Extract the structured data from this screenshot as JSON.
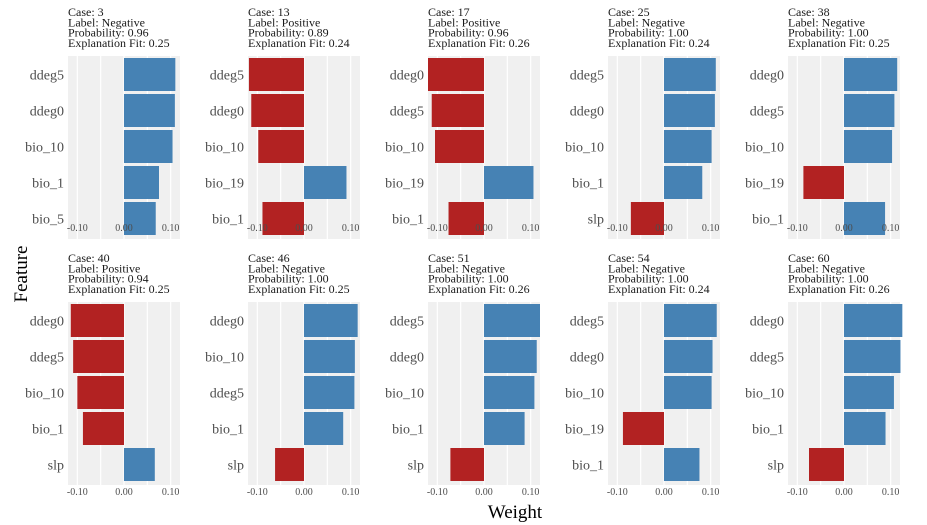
{
  "xlabel": "Weight",
  "ylabel": "Feature",
  "colors": {
    "supports": "#4682B4",
    "contradicts": "#B22222",
    "panel_bg": "#F0F0F0"
  },
  "chart_data": [
    {
      "type": "bar",
      "orientation": "horizontal",
      "case": "Case: 3",
      "label": "Label: Negative",
      "probability": "Probability: 0.96",
      "fit": "Explanation Fit: 0.25",
      "categories": [
        "ddeg5",
        "ddeg0",
        "bio_10",
        "bio_1",
        "bio_5"
      ],
      "values": [
        0.11,
        0.109,
        0.104,
        0.075,
        0.068
      ],
      "xlim": [
        -0.12,
        0.12
      ],
      "xticks": [
        "-0.10",
        "0.00",
        "0.10"
      ]
    },
    {
      "type": "bar",
      "orientation": "horizontal",
      "case": "Case: 13",
      "label": "Label: Positive",
      "probability": "Probability: 0.89",
      "fit": "Explanation Fit: 0.24",
      "categories": [
        "ddeg5",
        "ddeg0",
        "bio_10",
        "bio_19",
        "bio_1"
      ],
      "values": [
        -0.118,
        -0.113,
        -0.098,
        0.091,
        -0.089
      ],
      "xlim": [
        -0.12,
        0.12
      ],
      "xticks": [
        "-0.10",
        "0.00",
        "0.10"
      ]
    },
    {
      "type": "bar",
      "orientation": "horizontal",
      "case": "Case: 17",
      "label": "Label: Positive",
      "probability": "Probability: 0.96",
      "fit": "Explanation Fit: 0.26",
      "categories": [
        "ddeg0",
        "ddeg5",
        "bio_10",
        "bio_19",
        "bio_1"
      ],
      "values": [
        -0.12,
        -0.112,
        -0.105,
        0.106,
        -0.076
      ],
      "xlim": [
        -0.12,
        0.12
      ],
      "xticks": [
        "-0.10",
        "0.00",
        "0.10"
      ]
    },
    {
      "type": "bar",
      "orientation": "horizontal",
      "case": "Case: 25",
      "label": "Label: Negative",
      "probability": "Probability: 1.00",
      "fit": "Explanation Fit: 0.24",
      "categories": [
        "ddeg5",
        "ddeg0",
        "bio_10",
        "bio_1",
        "slp"
      ],
      "values": [
        0.111,
        0.109,
        0.102,
        0.082,
        -0.071
      ],
      "xlim": [
        -0.12,
        0.12
      ],
      "xticks": [
        "-0.10",
        "0.00",
        "0.10"
      ]
    },
    {
      "type": "bar",
      "orientation": "horizontal",
      "case": "Case: 38",
      "label": "Label: Negative",
      "probability": "Probability: 1.00",
      "fit": "Explanation Fit: 0.25",
      "categories": [
        "ddeg0",
        "ddeg5",
        "bio_10",
        "bio_19",
        "bio_1"
      ],
      "values": [
        0.114,
        0.108,
        0.103,
        -0.087,
        0.088
      ],
      "xlim": [
        -0.12,
        0.12
      ],
      "xticks": [
        "-0.10",
        "0.00",
        "0.10"
      ]
    },
    {
      "type": "bar",
      "orientation": "horizontal",
      "case": "Case: 40",
      "label": "Label: Positive",
      "probability": "Probability: 0.94",
      "fit": "Explanation Fit: 0.25",
      "categories": [
        "ddeg0",
        "ddeg5",
        "bio_10",
        "bio_1",
        "slp"
      ],
      "values": [
        -0.114,
        -0.109,
        -0.1,
        -0.088,
        0.066
      ],
      "xlim": [
        -0.12,
        0.12
      ],
      "xticks": [
        "-0.10",
        "0.00",
        "0.10"
      ]
    },
    {
      "type": "bar",
      "orientation": "horizontal",
      "case": "Case: 46",
      "label": "Label: Negative",
      "probability": "Probability: 1.00",
      "fit": "Explanation Fit: 0.25",
      "categories": [
        "ddeg0",
        "bio_10",
        "ddeg5",
        "bio_1",
        "slp"
      ],
      "values": [
        0.115,
        0.109,
        0.108,
        0.084,
        -0.062
      ],
      "xlim": [
        -0.12,
        0.12
      ],
      "xticks": [
        "-0.10",
        "0.00",
        "0.10"
      ]
    },
    {
      "type": "bar",
      "orientation": "horizontal",
      "case": "Case: 51",
      "label": "Label: Negative",
      "probability": "Probability: 1.00",
      "fit": "Explanation Fit: 0.26",
      "categories": [
        "ddeg5",
        "ddeg0",
        "bio_10",
        "bio_1",
        "slp"
      ],
      "values": [
        0.12,
        0.113,
        0.108,
        0.087,
        -0.072
      ],
      "xlim": [
        -0.12,
        0.12
      ],
      "xticks": [
        "-0.10",
        "0.00",
        "0.10"
      ]
    },
    {
      "type": "bar",
      "orientation": "horizontal",
      "case": "Case: 54",
      "label": "Label: Negative",
      "probability": "Probability: 1.00",
      "fit": "Explanation Fit: 0.24",
      "categories": [
        "ddeg5",
        "ddeg0",
        "bio_10",
        "bio_19",
        "bio_1"
      ],
      "values": [
        0.113,
        0.104,
        0.102,
        -0.088,
        0.076
      ],
      "xlim": [
        -0.12,
        0.12
      ],
      "xticks": [
        "-0.10",
        "0.00",
        "0.10"
      ]
    },
    {
      "type": "bar",
      "orientation": "horizontal",
      "case": "Case: 60",
      "label": "Label: Negative",
      "probability": "Probability: 1.00",
      "fit": "Explanation Fit: 0.26",
      "categories": [
        "ddeg0",
        "ddeg5",
        "bio_10",
        "bio_1",
        "slp"
      ],
      "values": [
        0.125,
        0.121,
        0.107,
        0.089,
        -0.075
      ],
      "xlim": [
        -0.12,
        0.12
      ],
      "xticks": [
        "-0.10",
        "0.00",
        "0.10"
      ]
    }
  ]
}
